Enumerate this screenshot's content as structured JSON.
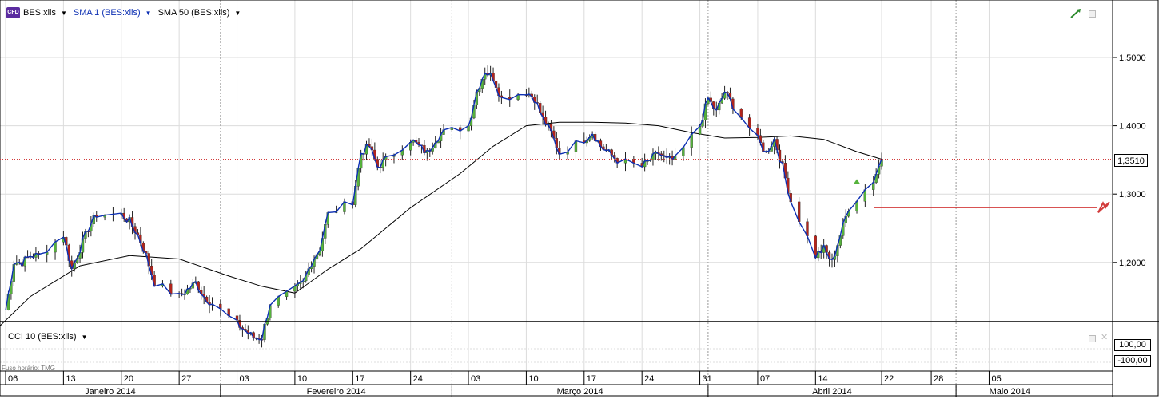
{
  "legend": {
    "instrument_badge": "CFD",
    "instrument": "BES:xlis",
    "sma1": "SMA 1 (BES:xlis)",
    "sma50": "SMA 50 (BES:xlis)",
    "arrow_icon": "triangle-down-icon"
  },
  "cci_panel": {
    "label": "CCI 10 (BES:xlis)",
    "upper": "100,00",
    "lower": "-100,00"
  },
  "timezone_label": "Fuso horário: TMG",
  "current_price_label": "1,3510",
  "colors": {
    "up_candle": "#56b33c",
    "down_candle": "#b2241c",
    "sma1": "#0c2fb3",
    "sma50": "#000000",
    "price_line": "#d23a3a",
    "grid": "#dcdcdc"
  },
  "chart_data": {
    "type": "candlestick",
    "y_ticks": [
      "1,2000",
      "1,3000",
      "1,4000",
      "1,5000"
    ],
    "ylim": [
      1.11,
      1.54
    ],
    "current_price": 1.351,
    "alert_level": 1.28,
    "x_ticks": [
      {
        "label": "06",
        "day": 0
      },
      {
        "label": "13",
        "day": 7
      },
      {
        "label": "20",
        "day": 14
      },
      {
        "label": "27",
        "day": 21
      },
      {
        "label": "03",
        "day": 28
      },
      {
        "label": "10",
        "day": 35
      },
      {
        "label": "17",
        "day": 42
      },
      {
        "label": "24",
        "day": 49
      },
      {
        "label": "03",
        "day": 56
      },
      {
        "label": "10",
        "day": 63
      },
      {
        "label": "17",
        "day": 70
      },
      {
        "label": "24",
        "day": 77
      },
      {
        "label": "31",
        "day": 84
      },
      {
        "label": "07",
        "day": 91
      },
      {
        "label": "14",
        "day": 98
      },
      {
        "label": "22",
        "day": 106
      },
      {
        "label": "28",
        "day": 112
      },
      {
        "label": "05",
        "day": 119
      }
    ],
    "months": [
      {
        "label": "Janeiro 2014",
        "start": -5,
        "end": 26
      },
      {
        "label": "Fevereiro 2014",
        "start": 26,
        "end": 54
      },
      {
        "label": "Março 2014",
        "start": 54,
        "end": 85
      },
      {
        "label": "Abril 2014",
        "start": 85,
        "end": 115
      },
      {
        "label": "Maio 2014",
        "start": 115,
        "end": 128
      }
    ],
    "closes": [
      [
        0,
        1.13
      ],
      [
        1,
        1.2
      ],
      [
        2,
        1.2
      ],
      [
        3,
        1.21
      ],
      [
        4,
        1.21
      ],
      [
        7,
        1.24
      ],
      [
        8,
        1.19
      ],
      [
        9,
        1.22
      ],
      [
        10,
        1.25
      ],
      [
        11,
        1.27
      ],
      [
        14,
        1.27
      ],
      [
        15,
        1.26
      ],
      [
        16,
        1.24
      ],
      [
        17,
        1.21
      ],
      [
        18,
        1.17
      ],
      [
        21,
        1.15
      ],
      [
        22,
        1.16
      ],
      [
        23,
        1.17
      ],
      [
        24,
        1.15
      ],
      [
        25,
        1.14
      ],
      [
        28,
        1.11
      ],
      [
        29,
        1.1
      ],
      [
        30,
        1.09
      ],
      [
        31,
        1.09
      ],
      [
        32,
        1.14
      ],
      [
        35,
        1.16
      ],
      [
        36,
        1.17
      ],
      [
        37,
        1.2
      ],
      [
        38,
        1.22
      ],
      [
        39,
        1.27
      ],
      [
        42,
        1.29
      ],
      [
        43,
        1.36
      ],
      [
        44,
        1.37
      ],
      [
        45,
        1.34
      ],
      [
        46,
        1.35
      ],
      [
        49,
        1.38
      ],
      [
        50,
        1.37
      ],
      [
        51,
        1.36
      ],
      [
        52,
        1.38
      ],
      [
        53,
        1.39
      ],
      [
        56,
        1.4
      ],
      [
        57,
        1.45
      ],
      [
        58,
        1.48
      ],
      [
        59,
        1.47
      ],
      [
        60,
        1.44
      ],
      [
        63,
        1.45
      ],
      [
        64,
        1.44
      ],
      [
        65,
        1.41
      ],
      [
        66,
        1.39
      ],
      [
        67,
        1.36
      ],
      [
        70,
        1.38
      ],
      [
        71,
        1.39
      ],
      [
        72,
        1.37
      ],
      [
        73,
        1.36
      ],
      [
        74,
        1.35
      ],
      [
        77,
        1.34
      ],
      [
        78,
        1.35
      ],
      [
        79,
        1.36
      ],
      [
        80,
        1.35
      ],
      [
        81,
        1.35
      ],
      [
        84,
        1.4
      ],
      [
        85,
        1.44
      ],
      [
        86,
        1.42
      ],
      [
        87,
        1.45
      ],
      [
        88,
        1.43
      ],
      [
        91,
        1.38
      ],
      [
        92,
        1.36
      ],
      [
        93,
        1.38
      ],
      [
        94,
        1.34
      ],
      [
        95,
        1.29
      ],
      [
        98,
        1.21
      ],
      [
        99,
        1.22
      ],
      [
        100,
        1.2
      ],
      [
        101,
        1.24
      ],
      [
        102,
        1.28
      ],
      [
        105,
        1.32
      ],
      [
        106,
        1.351
      ]
    ],
    "sma50": [
      [
        -3,
        1.08
      ],
      [
        3,
        1.15
      ],
      [
        9,
        1.195
      ],
      [
        15,
        1.21
      ],
      [
        21,
        1.205
      ],
      [
        27,
        1.18
      ],
      [
        31,
        1.165
      ],
      [
        35,
        1.155
      ],
      [
        39,
        1.19
      ],
      [
        43,
        1.22
      ],
      [
        49,
        1.28
      ],
      [
        55,
        1.33
      ],
      [
        59,
        1.37
      ],
      [
        63,
        1.4
      ],
      [
        67,
        1.405
      ],
      [
        71,
        1.405
      ],
      [
        75,
        1.404
      ],
      [
        79,
        1.4
      ],
      [
        83,
        1.39
      ],
      [
        87,
        1.382
      ],
      [
        91,
        1.383
      ],
      [
        95,
        1.385
      ],
      [
        99,
        1.38
      ],
      [
        103,
        1.362
      ],
      [
        106,
        1.351
      ]
    ]
  }
}
